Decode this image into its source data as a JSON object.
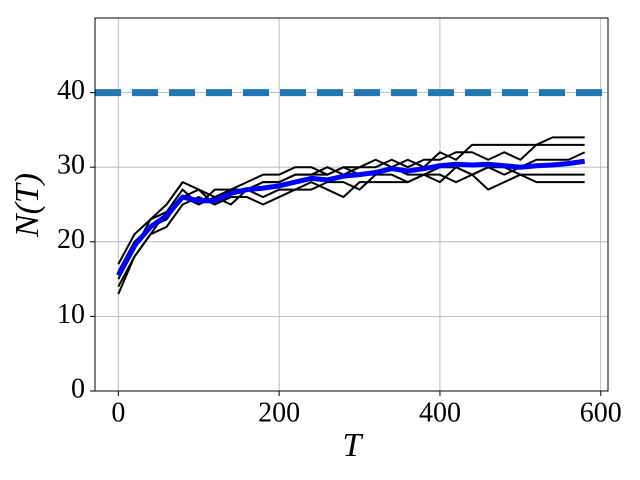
{
  "chart_data": {
    "type": "line",
    "x_label": "T",
    "y_label": "N(T)",
    "x": [
      0,
      20,
      40,
      60,
      80,
      100,
      120,
      140,
      160,
      180,
      200,
      220,
      240,
      260,
      280,
      300,
      320,
      340,
      360,
      380,
      400,
      420,
      440,
      460,
      480,
      500,
      520,
      540,
      560,
      580
    ],
    "series": [
      {
        "color": "#000000",
        "values": [
          14,
          18,
          21,
          24,
          27,
          25,
          26,
          27,
          28,
          29,
          29,
          30,
          30,
          29,
          30,
          30,
          31,
          30,
          31,
          30,
          32,
          31,
          33,
          33,
          33,
          33,
          33,
          33,
          33,
          33
        ]
      },
      {
        "color": "#000000",
        "values": [
          16,
          20,
          22,
          23,
          26,
          27,
          25,
          26,
          26,
          25,
          26,
          27,
          27,
          28,
          28,
          27,
          29,
          29,
          28,
          29,
          28,
          30,
          29,
          30,
          29,
          30,
          31,
          31,
          31,
          32
        ]
      },
      {
        "color": "#000000",
        "values": [
          17,
          21,
          23,
          25,
          28,
          27,
          26,
          25,
          27,
          28,
          28,
          29,
          29,
          30,
          29,
          30,
          30,
          31,
          30,
          31,
          31,
          32,
          32,
          31,
          32,
          31,
          33,
          34,
          34,
          34
        ]
      },
      {
        "color": "#000000",
        "values": [
          13,
          18,
          21,
          22,
          25,
          26,
          25,
          27,
          27,
          26,
          27,
          27,
          28,
          27,
          26,
          28,
          28,
          28,
          28,
          29,
          29,
          28,
          29,
          27,
          28,
          29,
          28,
          28,
          28,
          28
        ]
      },
      {
        "color": "#000000",
        "values": [
          15,
          19,
          23,
          24,
          26,
          25,
          27,
          27,
          27,
          28,
          28,
          29,
          29,
          29,
          30,
          29,
          29,
          30,
          29,
          29,
          30,
          30,
          29,
          30,
          30,
          29,
          29,
          29,
          29,
          29
        ]
      },
      {
        "color": "#0000ff",
        "values": [
          15.5,
          19.5,
          22,
          23.5,
          26,
          25.5,
          25.5,
          26.5,
          27,
          27.2,
          27.5,
          28,
          28.5,
          28.3,
          28.8,
          29,
          29.3,
          29.8,
          29.5,
          29.8,
          30.2,
          30.4,
          30.3,
          30.4,
          30.2,
          30,
          30.2,
          30.3,
          30.5,
          30.8
        ]
      }
    ],
    "reference_line": {
      "value": 40,
      "color": "#1f77b4"
    },
    "xlim": [
      -29,
      609
    ],
    "ylim": [
      0,
      50
    ],
    "xticks": [
      0,
      200,
      400,
      600
    ],
    "yticks": [
      0,
      10,
      20,
      30,
      40
    ],
    "grid": true
  }
}
